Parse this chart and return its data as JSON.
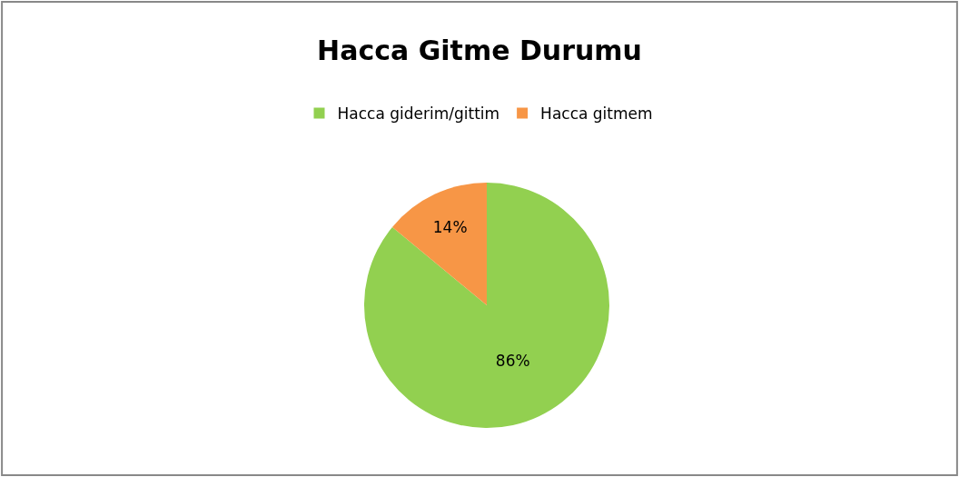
{
  "chart_data": {
    "type": "pie",
    "title": "Hacca Gitme Durumu",
    "categories": [
      "Hacca giderim/gittim",
      "Hacca gitmem"
    ],
    "values": [
      86,
      14
    ],
    "colors": [
      "#92d050",
      "#f79646"
    ],
    "value_labels": [
      "86%",
      "14%"
    ],
    "legend": "top"
  }
}
